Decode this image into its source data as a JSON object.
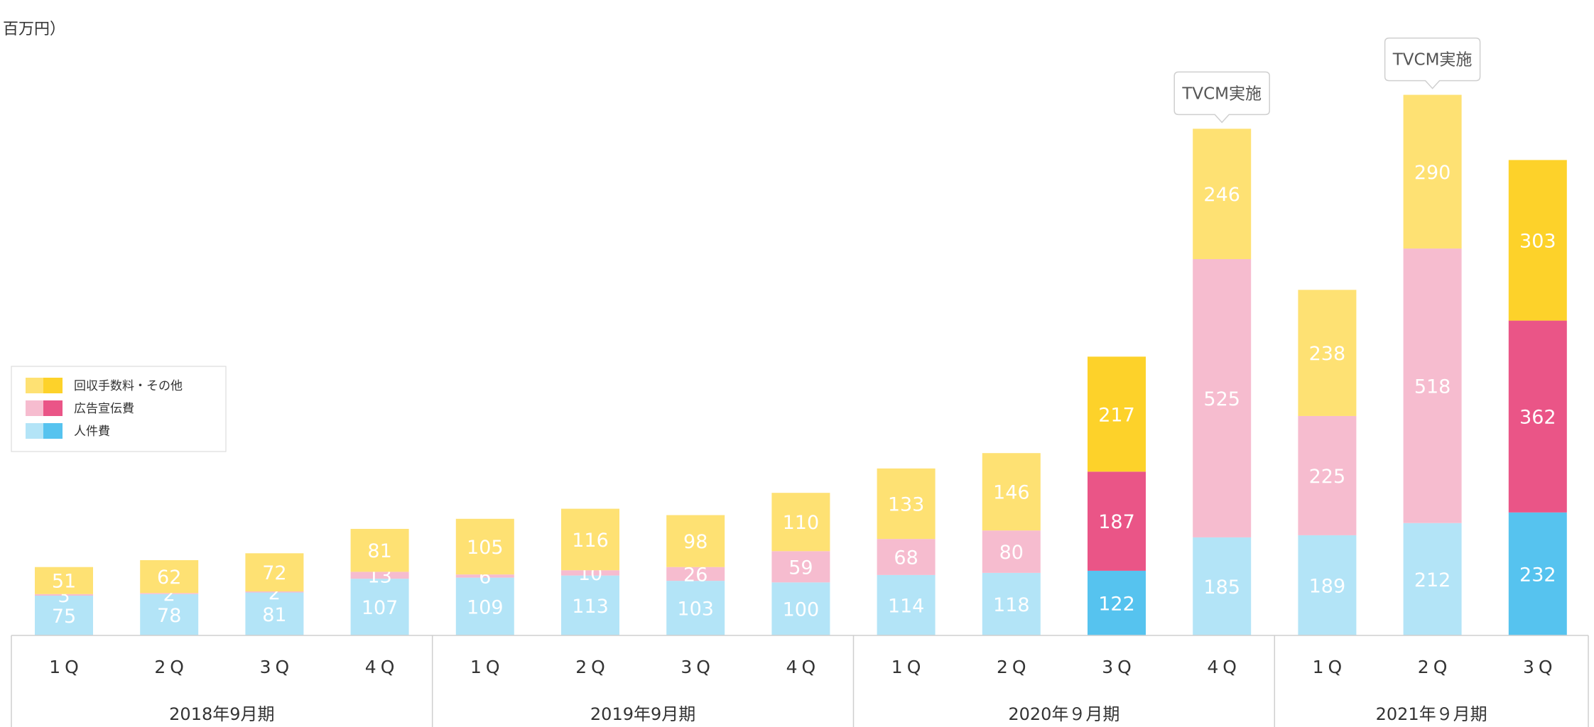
{
  "unit_label": "百万円）",
  "legend": [
    {
      "label": "回収手数料・その他",
      "colors": [
        "#fee173",
        "#fdd22a"
      ]
    },
    {
      "label": "広告宣伝費",
      "colors": [
        "#f6bccf",
        "#ea5587"
      ]
    },
    {
      "label": "人件費",
      "colors": [
        "#b3e4f7",
        "#56c3ef"
      ]
    }
  ],
  "annotations": [
    {
      "text": "TVCM実施",
      "category_index": 11
    },
    {
      "text": "TVCM実施",
      "category_index": 13
    }
  ],
  "chart_data": {
    "type": "bar",
    "stacked": true,
    "categories": [
      "1Q",
      "2Q",
      "3Q",
      "4Q",
      "1Q",
      "2Q",
      "3Q",
      "4Q",
      "1Q",
      "2Q",
      "3Q",
      "4Q",
      "1Q",
      "2Q",
      "3Q"
    ],
    "fiscal_years": [
      {
        "label": "2018年9月期",
        "start": 0,
        "count": 4
      },
      {
        "label": "2019年9月期",
        "start": 4,
        "count": 4
      },
      {
        "label": "2020年９月期",
        "start": 8,
        "count": 4
      },
      {
        "label": "2021年９月期",
        "start": 12,
        "count": 3
      }
    ],
    "series": [
      {
        "name": "人件費",
        "values": [
          75,
          78,
          81,
          107,
          109,
          113,
          103,
          100,
          114,
          118,
          122,
          185,
          189,
          212,
          232
        ],
        "color_light": "#b3e4f7",
        "color_dark": "#56c3ef"
      },
      {
        "name": "広告宣伝費",
        "values": [
          3,
          2,
          2,
          13,
          6,
          10,
          26,
          59,
          68,
          80,
          187,
          525,
          225,
          518,
          362
        ],
        "color_light": "#f6bccf",
        "color_dark": "#ea5587"
      },
      {
        "name": "回収手数料・その他",
        "values": [
          51,
          62,
          72,
          81,
          105,
          116,
          98,
          110,
          133,
          146,
          217,
          246,
          238,
          290,
          303
        ],
        "color_light": "#fee173",
        "color_dark": "#fdd22a"
      }
    ],
    "highlighted_categories": [
      10,
      14
    ],
    "ylim": [
      0,
      1000
    ],
    "grid": false,
    "legend_position": "left"
  }
}
